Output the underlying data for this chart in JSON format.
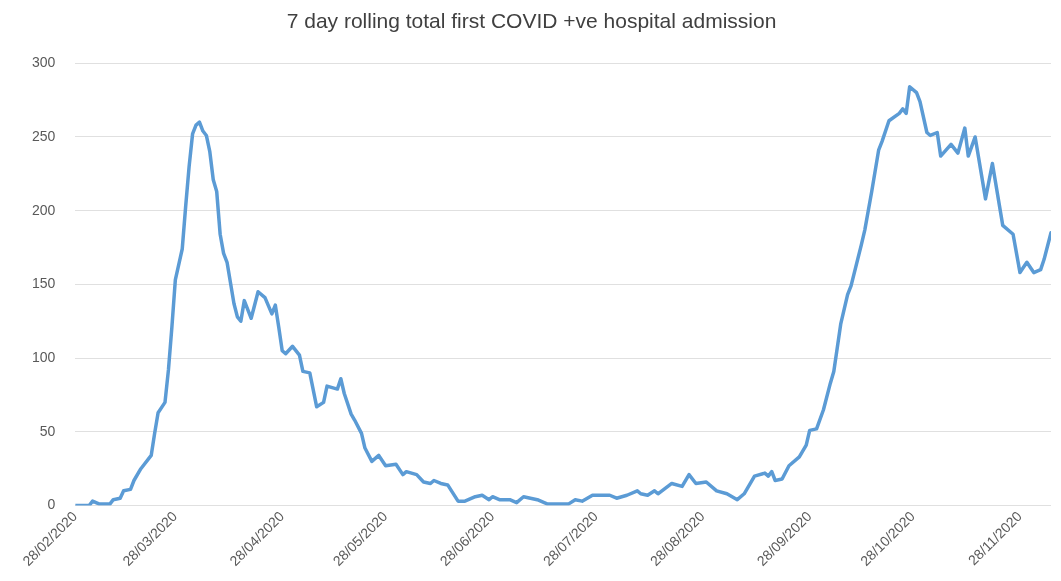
{
  "chart_data": {
    "type": "line",
    "title": "7 day rolling total first COVID +ve hospital admission",
    "x": [
      "2020-02-28",
      "2020-03-03",
      "2020-03-04",
      "2020-03-06",
      "2020-03-09",
      "2020-03-10",
      "2020-03-12",
      "2020-03-13",
      "2020-03-15",
      "2020-03-16",
      "2020-03-18",
      "2020-03-21",
      "2020-03-22",
      "2020-03-23",
      "2020-03-25",
      "2020-03-26",
      "2020-03-27",
      "2020-03-28",
      "2020-03-30",
      "2020-03-31",
      "2020-04-01",
      "2020-04-02",
      "2020-04-03",
      "2020-04-04",
      "2020-04-05",
      "2020-04-06",
      "2020-04-07",
      "2020-04-08",
      "2020-04-09",
      "2020-04-10",
      "2020-04-11",
      "2020-04-12",
      "2020-04-14",
      "2020-04-15",
      "2020-04-16",
      "2020-04-17",
      "2020-04-19",
      "2020-04-21",
      "2020-04-23",
      "2020-04-25",
      "2020-04-26",
      "2020-04-27",
      "2020-04-28",
      "2020-04-29",
      "2020-05-01",
      "2020-05-03",
      "2020-05-04",
      "2020-05-06",
      "2020-05-08",
      "2020-05-10",
      "2020-05-11",
      "2020-05-14",
      "2020-05-15",
      "2020-05-16",
      "2020-05-18",
      "2020-05-19",
      "2020-05-21",
      "2020-05-22",
      "2020-05-24",
      "2020-05-26",
      "2020-05-28",
      "2020-05-31",
      "2020-06-02",
      "2020-06-03",
      "2020-06-06",
      "2020-06-08",
      "2020-06-10",
      "2020-06-11",
      "2020-06-13",
      "2020-06-15",
      "2020-06-18",
      "2020-06-20",
      "2020-06-23",
      "2020-06-25",
      "2020-06-27",
      "2020-06-28",
      "2020-06-30",
      "2020-07-03",
      "2020-07-05",
      "2020-07-07",
      "2020-07-11",
      "2020-07-14",
      "2020-07-20",
      "2020-07-22",
      "2020-07-24",
      "2020-07-27",
      "2020-08-01",
      "2020-08-03",
      "2020-08-06",
      "2020-08-09",
      "2020-08-10",
      "2020-08-12",
      "2020-08-14",
      "2020-08-15",
      "2020-08-19",
      "2020-08-22",
      "2020-08-24",
      "2020-08-26",
      "2020-08-29",
      "2020-09-01",
      "2020-09-04",
      "2020-09-07",
      "2020-09-09",
      "2020-09-12",
      "2020-09-15",
      "2020-09-16",
      "2020-09-17",
      "2020-09-18",
      "2020-09-20",
      "2020-09-22",
      "2020-09-25",
      "2020-09-27",
      "2020-09-28",
      "2020-09-30",
      "2020-10-02",
      "2020-10-04",
      "2020-10-05",
      "2020-10-07",
      "2020-10-09",
      "2020-10-10",
      "2020-10-13",
      "2020-10-14",
      "2020-10-16",
      "2020-10-18",
      "2020-10-19",
      "2020-10-21",
      "2020-10-24",
      "2020-10-25",
      "2020-10-26",
      "2020-10-27",
      "2020-10-29",
      "2020-10-30",
      "2020-11-01",
      "2020-11-02",
      "2020-11-04",
      "2020-11-05",
      "2020-11-08",
      "2020-11-10",
      "2020-11-12",
      "2020-11-13",
      "2020-11-15",
      "2020-11-18",
      "2020-11-20",
      "2020-11-23",
      "2020-11-26",
      "2020-11-28",
      "2020-11-30",
      "2020-12-02",
      "2020-12-04",
      "2020-12-05",
      "2020-12-07"
    ],
    "series": [
      {
        "color": "#5b9bd5",
        "values": [
          0,
          0,
          3,
          1,
          1,
          4,
          5,
          10,
          11,
          17,
          25,
          34,
          49,
          63,
          70,
          92,
          121,
          153,
          174,
          203,
          230,
          252,
          258,
          260,
          254,
          251,
          240,
          221,
          213,
          184,
          171,
          165,
          137,
          128,
          125,
          139,
          127,
          145,
          141,
          130,
          136,
          121,
          105,
          103,
          108,
          102,
          91,
          90,
          67,
          70,
          81,
          79,
          86,
          76,
          62,
          58,
          49,
          39,
          30,
          34,
          27,
          28,
          21,
          23,
          21,
          16,
          15,
          17,
          15,
          14,
          3,
          3,
          6,
          7,
          4,
          6,
          4,
          4,
          2,
          6,
          4,
          1,
          1,
          4,
          3,
          7,
          7,
          5,
          7,
          10,
          8,
          7,
          10,
          8,
          15,
          13,
          21,
          15,
          16,
          10,
          8,
          4,
          8,
          20,
          22,
          20,
          23,
          17,
          18,
          27,
          33,
          41,
          51,
          52,
          65,
          83,
          91,
          123,
          143,
          149,
          177,
          187,
          213,
          241,
          247,
          261,
          266,
          269,
          266,
          284,
          280,
          274,
          253,
          251,
          253,
          237,
          245,
          239,
          256,
          237,
          250,
          208,
          232,
          190,
          184,
          158,
          165,
          158,
          160,
          167,
          185
        ]
      }
    ],
    "xlim": [
      "2020-02-28",
      "2020-12-07"
    ],
    "xticks": [
      {
        "value": "2020-02-28",
        "label": "28/02/2020"
      },
      {
        "value": "2020-03-28",
        "label": "28/03/2020"
      },
      {
        "value": "2020-04-28",
        "label": "28/04/2020"
      },
      {
        "value": "2020-05-28",
        "label": "28/05/2020"
      },
      {
        "value": "2020-06-28",
        "label": "28/06/2020"
      },
      {
        "value": "2020-07-28",
        "label": "28/07/2020"
      },
      {
        "value": "2020-08-28",
        "label": "28/08/2020"
      },
      {
        "value": "2020-09-28",
        "label": "28/09/2020"
      },
      {
        "value": "2020-10-28",
        "label": "28/10/2020"
      },
      {
        "value": "2020-11-28",
        "label": "28/11/2020"
      }
    ],
    "ylim": [
      0,
      300
    ],
    "yticks": [
      0,
      50,
      100,
      150,
      200,
      250,
      300
    ],
    "grid": "y",
    "legend": false,
    "marker": "none",
    "line_style": "solid"
  }
}
